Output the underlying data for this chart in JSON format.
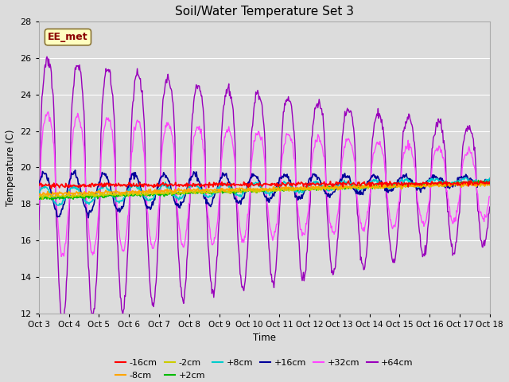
{
  "title": "Soil/Water Temperature Set 3",
  "xlabel": "Time",
  "ylabel": "Temperature (C)",
  "ylim": [
    12,
    28
  ],
  "yticks": [
    12,
    14,
    16,
    18,
    20,
    22,
    24,
    26,
    28
  ],
  "xlim_days": 15,
  "xtick_labels": [
    "Oct 3",
    "Oct 4",
    "Oct 5",
    "Oct 6",
    "Oct 7",
    "Oct 8",
    "Oct 9",
    "Oct 10",
    "Oct 11",
    "Oct 12",
    "Oct 13",
    "Oct 14",
    "Oct 15",
    "Oct 16",
    "Oct 17",
    "Oct 18"
  ],
  "watermark_text": "EE_met",
  "watermark_fg": "#8B0000",
  "watermark_bg": "#FFFFC0",
  "watermark_border": "#8B7536",
  "series": [
    {
      "label": "-16cm",
      "color": "#FF0000",
      "linewidth": 1.2,
      "zorder": 5
    },
    {
      "label": "-8cm",
      "color": "#FFA500",
      "linewidth": 1.2,
      "zorder": 4
    },
    {
      "label": "-2cm",
      "color": "#CCCC00",
      "linewidth": 1.2,
      "zorder": 4
    },
    {
      "label": "+2cm",
      "color": "#00BB00",
      "linewidth": 1.2,
      "zorder": 4
    },
    {
      "label": "+8cm",
      "color": "#00CCCC",
      "linewidth": 1.2,
      "zorder": 4
    },
    {
      "label": "+16cm",
      "color": "#000099",
      "linewidth": 1.2,
      "zorder": 4
    },
    {
      "label": "+32cm",
      "color": "#FF44FF",
      "linewidth": 1.0,
      "zorder": 3
    },
    {
      "label": "+64cm",
      "color": "#9900BB",
      "linewidth": 1.0,
      "zorder": 3
    }
  ],
  "background_color": "#DCDCDC",
  "plot_bg_color": "#DCDCDC",
  "grid_color": "#FFFFFF",
  "title_fontsize": 11,
  "legend_fontsize": 8
}
